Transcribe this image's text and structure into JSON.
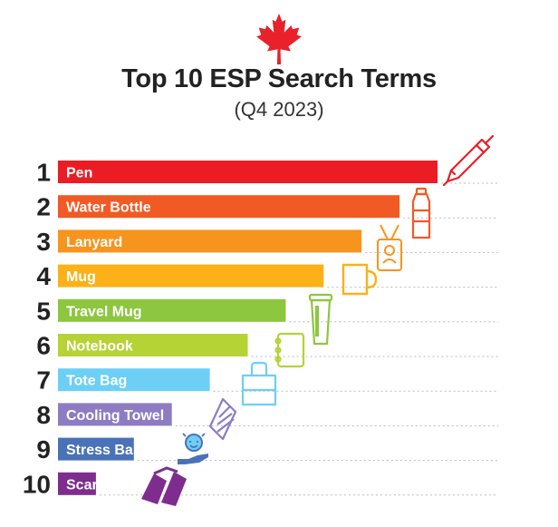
{
  "header": {
    "title": "Top 10 ESP Search Terms",
    "subtitle": "(Q4 2023)"
  },
  "icons": {
    "header": "maple-leaf-icon",
    "items": [
      "pen-icon",
      "water-bottle-icon",
      "lanyard-icon",
      "mug-icon",
      "travel-mug-icon",
      "notebook-icon",
      "tote-bag-icon",
      "cooling-towel-icon",
      "stress-ball-icon",
      "scarf-icon"
    ]
  },
  "colors": {
    "maple_leaf": "#E8212A",
    "bars": [
      "#EC1C24",
      "#F15A24",
      "#F7941D",
      "#FBB117",
      "#8DC63F",
      "#B5D334",
      "#6DCFF6",
      "#8E7CC3",
      "#4A72B8",
      "#7E2D8F"
    ]
  },
  "chart_data": {
    "type": "bar",
    "orientation": "horizontal",
    "title": "Top 10 ESP Search Terms",
    "subtitle": "(Q4 2023)",
    "ranks": [
      "1",
      "2",
      "3",
      "4",
      "5",
      "6",
      "7",
      "8",
      "9",
      "10"
    ],
    "categories": [
      "Pen",
      "Water Bottle",
      "Lanyard",
      "Mug",
      "Travel Mug",
      "Notebook",
      "Tote Bag",
      "Cooling Towel",
      "Stress Ball",
      "Scarf"
    ],
    "values": [
      10,
      9,
      8,
      7,
      6,
      5,
      4,
      3,
      2,
      1
    ],
    "grid": "dotted-horizontal"
  }
}
